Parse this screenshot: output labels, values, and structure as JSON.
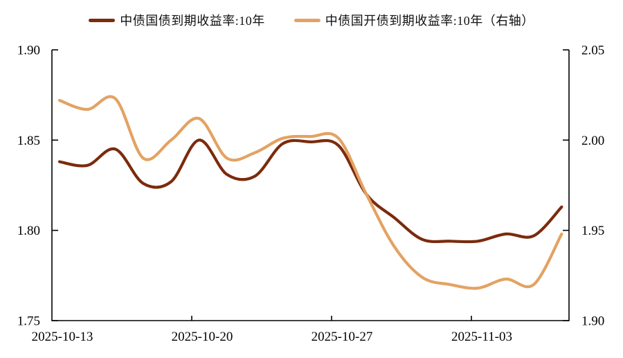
{
  "legend": {
    "items": [
      {
        "label": "中债国债到期收益率:10年",
        "color": "#7B2B0D"
      },
      {
        "label": "中债国开债到期收益率:10年（右轴）",
        "color": "#E3A263"
      }
    ]
  },
  "chart_data": {
    "type": "line",
    "title": "",
    "x": [
      "2025-10-13",
      "2025-10-14",
      "2025-10-15",
      "2025-10-16",
      "2025-10-17",
      "2025-10-20",
      "2025-10-21",
      "2025-10-22",
      "2025-10-23",
      "2025-10-24",
      "2025-10-27",
      "2025-10-28",
      "2025-10-29",
      "2025-10-30",
      "2025-10-31",
      "2025-11-03",
      "2025-11-04",
      "2025-11-05",
      "2025-11-06"
    ],
    "x_tick_labels": [
      "2025-10-13",
      "2025-10-20",
      "2025-10-27",
      "2025-11-03"
    ],
    "left_axis": {
      "min": 1.75,
      "max": 1.9,
      "tick_labels": [
        "1.90",
        "1.85",
        "1.80",
        "1.75"
      ]
    },
    "right_axis": {
      "min": 1.9,
      "max": 2.05,
      "tick_labels": [
        "2.05",
        "2.00",
        "1.95",
        "1.90"
      ]
    },
    "grid": false,
    "legend_position": "top",
    "axis_color": "#000000",
    "series": [
      {
        "name": "中债国债到期收益率:10年",
        "axis": "left",
        "color": "#7B2B0D",
        "values": [
          1.838,
          1.836,
          1.845,
          1.826,
          1.827,
          1.85,
          1.831,
          1.83,
          1.848,
          1.849,
          1.847,
          1.82,
          1.807,
          1.795,
          1.794,
          1.794,
          1.798,
          1.797,
          1.813
        ]
      },
      {
        "name": "中债国开债到期收益率:10年（右轴）",
        "axis": "right",
        "color": "#E3A263",
        "values": [
          2.022,
          2.017,
          2.023,
          1.99,
          2.0,
          2.012,
          1.99,
          1.993,
          2.001,
          2.002,
          2.001,
          1.97,
          1.941,
          1.924,
          1.92,
          1.918,
          1.923,
          1.92,
          1.948
        ]
      }
    ]
  }
}
